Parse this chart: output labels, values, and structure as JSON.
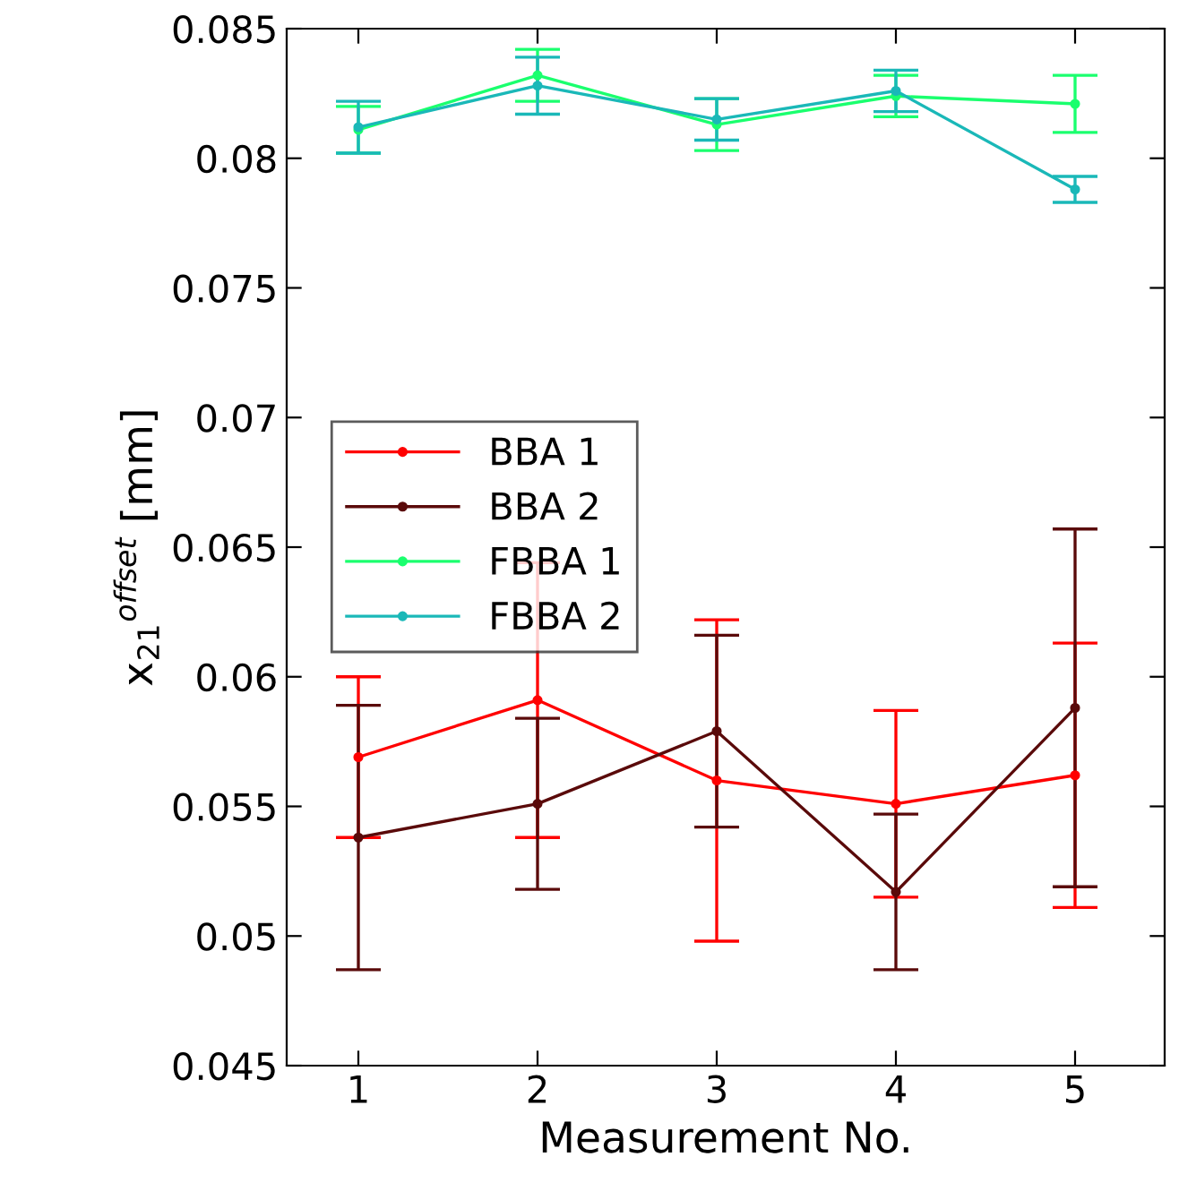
{
  "chart_data": {
    "type": "line",
    "xlabel": "Measurement No.",
    "ylabel": "x$_{21}$$^{offset}$ [mm]",
    "x": [
      1,
      2,
      3,
      4,
      5
    ],
    "xlim": [
      0.6,
      5.5
    ],
    "xticks": [
      1,
      2,
      3,
      4,
      5
    ],
    "ylim": [
      0.045,
      0.085
    ],
    "yticks": [
      0.045,
      0.05,
      0.055,
      0.06,
      0.065,
      0.07,
      0.075,
      0.08,
      0.085
    ],
    "grid": false,
    "legend": "left",
    "marker": "circle",
    "line_style": "solid",
    "series": [
      {
        "name": "BBA 1",
        "color": "#ff0000",
        "values": [
          0.0569,
          0.0591,
          0.056,
          0.0551,
          0.0562
        ],
        "errors": [
          0.0031,
          0.0053,
          0.0062,
          0.0036,
          0.0051
        ]
      },
      {
        "name": "BBA 2",
        "color": "#5a0a0a",
        "values": [
          0.0538,
          0.0551,
          0.0579,
          0.0517,
          0.0588
        ],
        "errors": [
          0.0051,
          0.0033,
          0.0037,
          0.003,
          0.0069
        ]
      },
      {
        "name": "FBBA 1",
        "color": "#1aff6e",
        "values": [
          0.0811,
          0.0832,
          0.0813,
          0.0824,
          0.0821
        ],
        "errors": [
          0.0009,
          0.001,
          0.001,
          0.0008,
          0.0011
        ]
      },
      {
        "name": "FBBA 2",
        "color": "#1ab8b8",
        "values": [
          0.0812,
          0.0828,
          0.0815,
          0.0826,
          0.0788
        ],
        "errors": [
          0.001,
          0.0011,
          0.0008,
          0.0008,
          0.0005
        ]
      }
    ]
  }
}
